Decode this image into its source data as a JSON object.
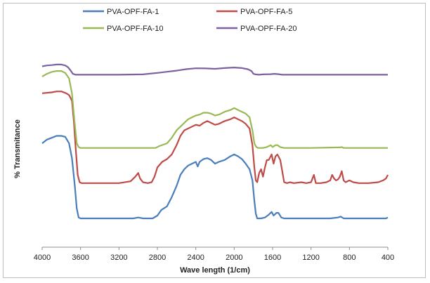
{
  "chart_data": {
    "type": "line",
    "xlabel": "Wave length (1/cm)",
    "ylabel": "% Transmitance",
    "x_reversed": true,
    "xlim": [
      4000,
      400
    ],
    "y_scale_relative": true,
    "ylim": [
      0,
      100
    ],
    "xticks": [
      "4000",
      "3600",
      "3200",
      "2800",
      "2400",
      "2000",
      "1600",
      "1200",
      "800",
      "400"
    ],
    "legend_position": "top",
    "grid": false,
    "series": [
      {
        "name": "PVA-OPF-FA-1",
        "color": "#4a7ebb",
        "points": [
          [
            4000,
            53
          ],
          [
            3950,
            55
          ],
          [
            3900,
            56
          ],
          [
            3850,
            57
          ],
          [
            3800,
            57
          ],
          [
            3760,
            56.5
          ],
          [
            3720,
            53
          ],
          [
            3690,
            45
          ],
          [
            3660,
            30
          ],
          [
            3640,
            18
          ],
          [
            3620,
            13
          ],
          [
            3600,
            12.5
          ],
          [
            3400,
            12.5
          ],
          [
            3200,
            12.5
          ],
          [
            3050,
            12.5
          ],
          [
            3000,
            13
          ],
          [
            2950,
            12.5
          ],
          [
            2850,
            12.5
          ],
          [
            2800,
            14
          ],
          [
            2760,
            17
          ],
          [
            2700,
            19
          ],
          [
            2650,
            24
          ],
          [
            2600,
            30
          ],
          [
            2560,
            36
          ],
          [
            2520,
            39
          ],
          [
            2480,
            41
          ],
          [
            2440,
            42
          ],
          [
            2400,
            43
          ],
          [
            2380,
            40.5
          ],
          [
            2360,
            43
          ],
          [
            2320,
            44.5
          ],
          [
            2280,
            45
          ],
          [
            2240,
            44
          ],
          [
            2200,
            42
          ],
          [
            2160,
            43
          ],
          [
            2100,
            44
          ],
          [
            2040,
            46
          ],
          [
            2000,
            47
          ],
          [
            1960,
            46
          ],
          [
            1920,
            44.5
          ],
          [
            1880,
            42
          ],
          [
            1840,
            39
          ],
          [
            1810,
            33
          ],
          [
            1790,
            22
          ],
          [
            1775,
            15
          ],
          [
            1760,
            12.5
          ],
          [
            1720,
            12.5
          ],
          [
            1680,
            13
          ],
          [
            1640,
            14.5
          ],
          [
            1610,
            16
          ],
          [
            1590,
            14
          ],
          [
            1560,
            15.5
          ],
          [
            1540,
            15.5
          ],
          [
            1510,
            13
          ],
          [
            1480,
            12.5
          ],
          [
            1300,
            12.5
          ],
          [
            1000,
            12.5
          ],
          [
            920,
            13
          ],
          [
            890,
            13.5
          ],
          [
            860,
            12.5
          ],
          [
            800,
            12.5
          ],
          [
            600,
            12.5
          ],
          [
            420,
            12.5
          ],
          [
            400,
            13
          ]
        ]
      },
      {
        "name": "PVA-OPF-FA-5",
        "color": "#be4b48",
        "points": [
          [
            4000,
            80
          ],
          [
            3900,
            80.5
          ],
          [
            3850,
            81
          ],
          [
            3800,
            81
          ],
          [
            3750,
            80
          ],
          [
            3720,
            79
          ],
          [
            3690,
            76
          ],
          [
            3670,
            65
          ],
          [
            3650,
            50
          ],
          [
            3630,
            36
          ],
          [
            3610,
            32
          ],
          [
            3590,
            31.5
          ],
          [
            3400,
            31.5
          ],
          [
            3200,
            31.5
          ],
          [
            3080,
            32.5
          ],
          [
            3030,
            35
          ],
          [
            3000,
            37
          ],
          [
            2980,
            34
          ],
          [
            2950,
            32
          ],
          [
            2900,
            31.5
          ],
          [
            2860,
            32
          ],
          [
            2830,
            35
          ],
          [
            2800,
            40
          ],
          [
            2750,
            43
          ],
          [
            2700,
            44.5
          ],
          [
            2650,
            47
          ],
          [
            2600,
            52
          ],
          [
            2560,
            57
          ],
          [
            2520,
            60
          ],
          [
            2480,
            61
          ],
          [
            2440,
            62
          ],
          [
            2400,
            63
          ],
          [
            2360,
            62.5
          ],
          [
            2320,
            64
          ],
          [
            2280,
            65
          ],
          [
            2240,
            64
          ],
          [
            2200,
            63
          ],
          [
            2160,
            63.5
          ],
          [
            2100,
            65
          ],
          [
            2040,
            66
          ],
          [
            2000,
            67
          ],
          [
            1960,
            66
          ],
          [
            1920,
            65
          ],
          [
            1880,
            63.5
          ],
          [
            1840,
            61
          ],
          [
            1810,
            52
          ],
          [
            1790,
            40
          ],
          [
            1775,
            33
          ],
          [
            1760,
            32
          ],
          [
            1740,
            37
          ],
          [
            1720,
            39
          ],
          [
            1700,
            35
          ],
          [
            1680,
            40
          ],
          [
            1660,
            44
          ],
          [
            1640,
            44
          ],
          [
            1610,
            47
          ],
          [
            1590,
            42
          ],
          [
            1570,
            46
          ],
          [
            1550,
            47
          ],
          [
            1520,
            44
          ],
          [
            1500,
            38
          ],
          [
            1480,
            32
          ],
          [
            1450,
            31.5
          ],
          [
            1420,
            32
          ],
          [
            1380,
            31.5
          ],
          [
            1300,
            32
          ],
          [
            1250,
            31.5
          ],
          [
            1200,
            32
          ],
          [
            1170,
            36
          ],
          [
            1150,
            31.5
          ],
          [
            1100,
            31.5
          ],
          [
            1040,
            32
          ],
          [
            1000,
            33
          ],
          [
            980,
            36
          ],
          [
            960,
            34
          ],
          [
            940,
            33
          ],
          [
            920,
            33.5
          ],
          [
            900,
            35
          ],
          [
            880,
            38
          ],
          [
            860,
            33
          ],
          [
            840,
            32
          ],
          [
            800,
            33
          ],
          [
            760,
            32
          ],
          [
            700,
            31.5
          ],
          [
            600,
            31.5
          ],
          [
            500,
            32
          ],
          [
            450,
            33
          ],
          [
            420,
            34
          ],
          [
            400,
            36
          ]
        ]
      },
      {
        "name": "PVA-OPF-FA-10",
        "color": "#98b954",
        "points": [
          [
            4000,
            89
          ],
          [
            3950,
            90.5
          ],
          [
            3900,
            91.5
          ],
          [
            3850,
            92
          ],
          [
            3800,
            92
          ],
          [
            3760,
            91
          ],
          [
            3720,
            88
          ],
          [
            3690,
            80
          ],
          [
            3660,
            63
          ],
          [
            3640,
            53
          ],
          [
            3620,
            51
          ],
          [
            3600,
            50.5
          ],
          [
            3400,
            50.5
          ],
          [
            3000,
            50.5
          ],
          [
            2820,
            50.5
          ],
          [
            2780,
            51.5
          ],
          [
            2700,
            53
          ],
          [
            2650,
            56
          ],
          [
            2600,
            60
          ],
          [
            2560,
            62
          ],
          [
            2520,
            64
          ],
          [
            2480,
            66
          ],
          [
            2440,
            67
          ],
          [
            2400,
            68
          ],
          [
            2360,
            68.5
          ],
          [
            2320,
            69.5
          ],
          [
            2280,
            69.5
          ],
          [
            2240,
            69
          ],
          [
            2200,
            68
          ],
          [
            2160,
            68.5
          ],
          [
            2100,
            70
          ],
          [
            2040,
            71
          ],
          [
            2000,
            72
          ],
          [
            1960,
            71
          ],
          [
            1920,
            70
          ],
          [
            1880,
            69
          ],
          [
            1840,
            67
          ],
          [
            1810,
            60
          ],
          [
            1790,
            53
          ],
          [
            1770,
            51
          ],
          [
            1750,
            50.5
          ],
          [
            1700,
            50.5
          ],
          [
            1660,
            51
          ],
          [
            1620,
            52
          ],
          [
            1600,
            51
          ],
          [
            1570,
            52
          ],
          [
            1550,
            52
          ],
          [
            1520,
            51
          ],
          [
            1480,
            50.5
          ],
          [
            1200,
            50.5
          ],
          [
            900,
            50.8
          ],
          [
            880,
            51
          ],
          [
            860,
            50.5
          ],
          [
            600,
            50.5
          ],
          [
            400,
            50.5
          ]
        ]
      },
      {
        "name": "PVA-OPF-FA-20",
        "color": "#7d60a0",
        "points": [
          [
            4000,
            94.5
          ],
          [
            3950,
            95
          ],
          [
            3900,
            95.2
          ],
          [
            3850,
            95.5
          ],
          [
            3800,
            95.5
          ],
          [
            3760,
            95
          ],
          [
            3730,
            94
          ],
          [
            3700,
            92
          ],
          [
            3680,
            90.5
          ],
          [
            3650,
            90
          ],
          [
            3600,
            90
          ],
          [
            3200,
            90
          ],
          [
            2950,
            90.2
          ],
          [
            2800,
            91
          ],
          [
            2700,
            91.6
          ],
          [
            2600,
            92.2
          ],
          [
            2500,
            93
          ],
          [
            2400,
            93.5
          ],
          [
            2300,
            93.4
          ],
          [
            2200,
            93.2
          ],
          [
            2100,
            93.6
          ],
          [
            2000,
            93.9
          ],
          [
            1920,
            93.6
          ],
          [
            1860,
            93
          ],
          [
            1820,
            92
          ],
          [
            1800,
            90.5
          ],
          [
            1780,
            90.2
          ],
          [
            1740,
            90
          ],
          [
            1700,
            90.2
          ],
          [
            1620,
            90.3
          ],
          [
            1580,
            90.5
          ],
          [
            1540,
            90.3
          ],
          [
            1500,
            90
          ],
          [
            1200,
            90
          ],
          [
            800,
            90
          ],
          [
            400,
            90
          ]
        ]
      }
    ]
  }
}
